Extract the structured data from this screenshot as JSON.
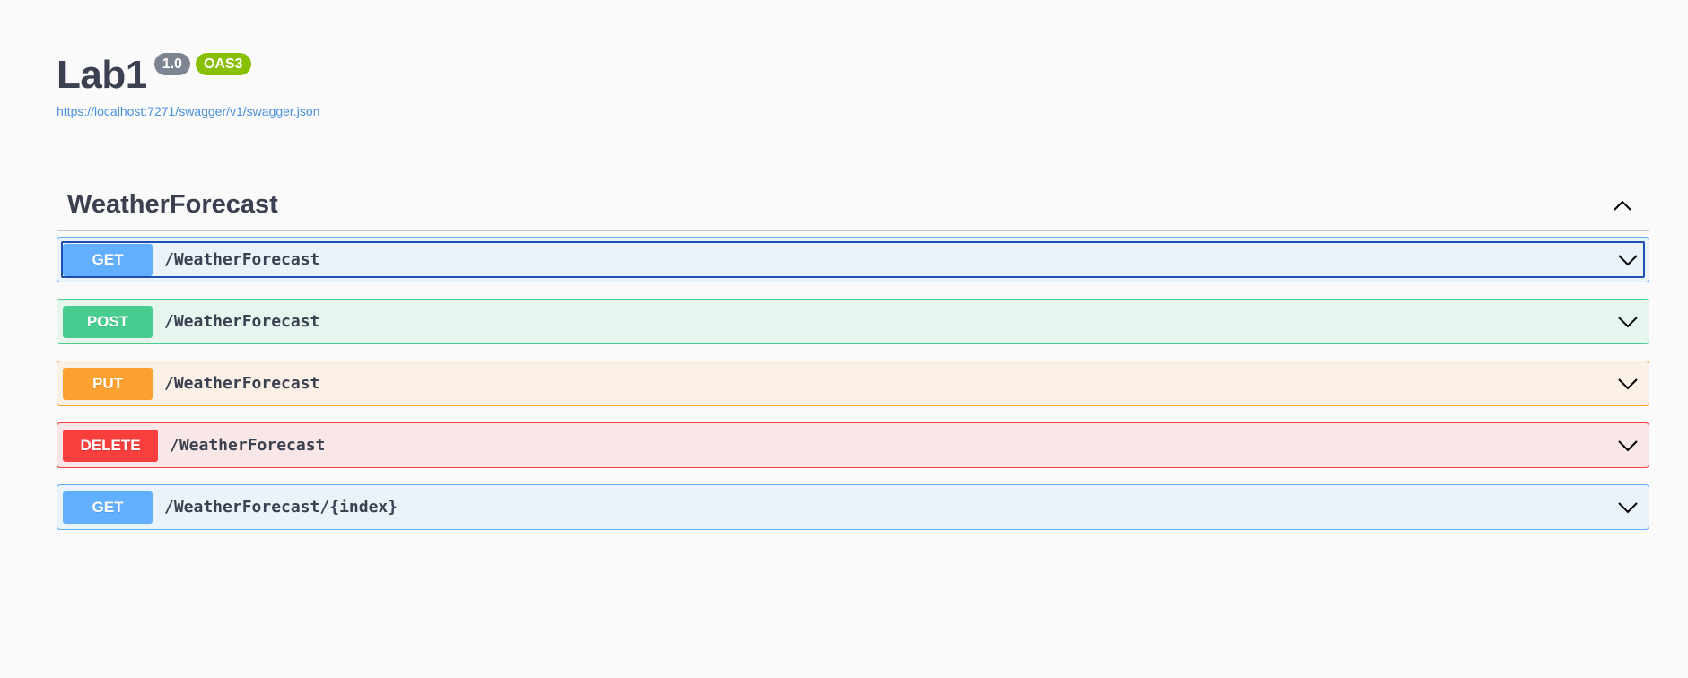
{
  "info": {
    "title": "Lab1",
    "version_badge": "1.0",
    "oas_badge": "OAS3",
    "spec_url": "https://localhost:7271/swagger/v1/swagger.json"
  },
  "tag": {
    "name": "WeatherForecast",
    "toggle_icon": "chevron-up-icon"
  },
  "operations": [
    {
      "method": "GET",
      "path": "/WeatherForecast",
      "color": "#61affe",
      "focused": true
    },
    {
      "method": "POST",
      "path": "/WeatherForecast",
      "color": "#49cc90"
    },
    {
      "method": "PUT",
      "path": "/WeatherForecast",
      "color": "#fca130"
    },
    {
      "method": "DELETE",
      "path": "/WeatherForecast",
      "color": "#f93e3e"
    },
    {
      "method": "GET",
      "path": "/WeatherForecast/{index}",
      "color": "#61affe"
    }
  ],
  "colors": {
    "background": "#fafafa",
    "text": "#3b4151",
    "link": "#4990e2",
    "version_badge": "#7d8492",
    "oas_badge": "#89bf04"
  }
}
